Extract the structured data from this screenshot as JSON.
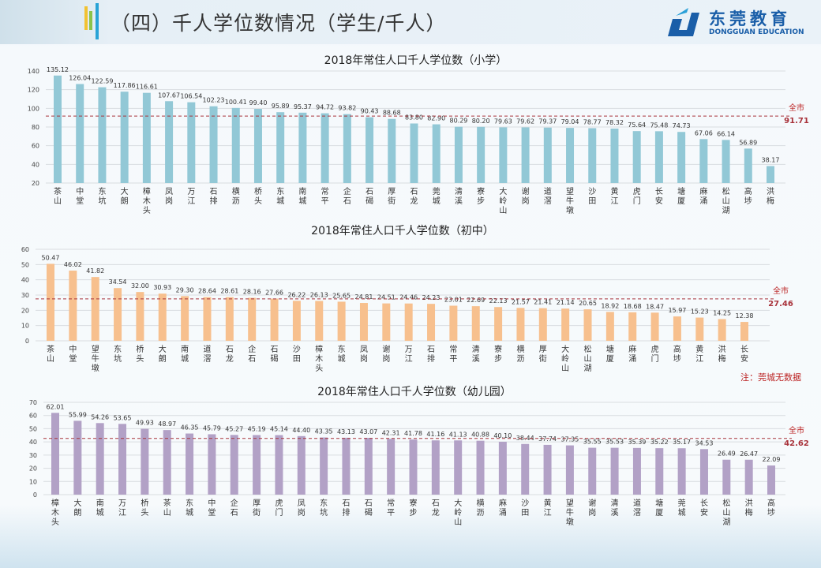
{
  "header": {
    "title": "（四）千人学位数情况（学生/千人）"
  },
  "logo": {
    "name_cn": "东莞教育",
    "name_en": "DONGGUAN EDUCATION"
  },
  "note": "注：莞城无数据",
  "chart_data": [
    {
      "type": "bar",
      "title": "2018年常住人口千人学位数（小学）",
      "ylim": [
        20,
        140
      ],
      "yticks": [
        20,
        40,
        60,
        80,
        100,
        120,
        140
      ],
      "bar_color": "#92c8d6",
      "grid": true,
      "average": {
        "label": "全市",
        "value": 91.71
      },
      "categories": [
        "茶山",
        "中堂",
        "东坑",
        "大朗",
        "樟木头",
        "凤岗",
        "万江",
        "石排",
        "横沥",
        "桥头",
        "东城",
        "南城",
        "常平",
        "企石",
        "石碣",
        "厚街",
        "石龙",
        "莞城",
        "清溪",
        "寮步",
        "大岭山",
        "谢岗",
        "道滘",
        "望牛墩",
        "沙田",
        "黄江",
        "虎门",
        "长安",
        "塘厦",
        "麻涌",
        "松山湖",
        "高埗",
        "洪梅"
      ],
      "values": [
        135.12,
        126.04,
        122.59,
        117.86,
        116.61,
        107.67,
        106.54,
        102.23,
        100.41,
        99.4,
        95.89,
        95.37,
        94.72,
        93.82,
        90.43,
        88.68,
        83.8,
        82.9,
        80.29,
        80.2,
        79.63,
        79.62,
        79.37,
        79.04,
        78.77,
        78.32,
        75.64,
        75.48,
        74.73,
        67.06,
        66.14,
        56.89,
        38.17
      ]
    },
    {
      "type": "bar",
      "title": "2018年常住人口千人学位数（初中）",
      "ylim": [
        0,
        60
      ],
      "yticks": [
        0,
        10,
        20,
        30,
        40,
        50,
        60
      ],
      "bar_color": "#f7c08e",
      "grid": true,
      "average": {
        "label": "全市",
        "value": 27.46
      },
      "categories": [
        "茶山",
        "中堂",
        "望牛墩",
        "东坑",
        "桥头",
        "大朗",
        "南城",
        "道滘",
        "石龙",
        "企石",
        "石碣",
        "沙田",
        "樟木头",
        "东城",
        "凤岗",
        "谢岗",
        "万江",
        "石排",
        "常平",
        "清溪",
        "寮步",
        "横沥",
        "厚街",
        "大岭山",
        "松山湖",
        "塘厦",
        "麻涌",
        "虎门",
        "高埗",
        "黄江",
        "洪梅",
        "长安"
      ],
      "values": [
        50.47,
        46.02,
        41.82,
        34.54,
        32.0,
        30.93,
        29.3,
        28.64,
        28.61,
        28.16,
        27.66,
        26.22,
        26.13,
        25.65,
        24.81,
        24.51,
        24.46,
        24.23,
        23.01,
        22.69,
        22.13,
        21.57,
        21.41,
        21.14,
        20.65,
        18.92,
        18.68,
        18.47,
        15.97,
        15.23,
        14.25,
        12.38
      ]
    },
    {
      "type": "bar",
      "title": "2018年常住人口千人学位数（幼儿园）",
      "ylim": [
        0,
        70
      ],
      "yticks": [
        0,
        10,
        20,
        30,
        40,
        50,
        60,
        70
      ],
      "bar_color": "#b2a1c6",
      "grid": true,
      "average": {
        "label": "全市",
        "value": 42.62
      },
      "categories": [
        "樟木头",
        "大朗",
        "南城",
        "万江",
        "桥头",
        "茶山",
        "东城",
        "中堂",
        "企石",
        "厚街",
        "虎门",
        "凤岗",
        "东坑",
        "石排",
        "石碣",
        "常平",
        "寮步",
        "石龙",
        "大岭山",
        "横沥",
        "麻涌",
        "沙田",
        "黄江",
        "望牛墩",
        "谢岗",
        "清溪",
        "道滘",
        "塘厦",
        "莞城",
        "长安",
        "松山湖",
        "洪梅",
        "高埗"
      ],
      "values": [
        62.01,
        55.99,
        54.26,
        53.65,
        49.93,
        48.97,
        46.35,
        45.79,
        45.27,
        45.19,
        45.14,
        44.4,
        43.35,
        43.13,
        43.07,
        42.31,
        41.78,
        41.16,
        41.13,
        40.88,
        40.1,
        38.44,
        37.74,
        37.35,
        35.55,
        35.53,
        35.39,
        35.22,
        35.17,
        34.53,
        26.49,
        26.47,
        22.09
      ]
    }
  ]
}
